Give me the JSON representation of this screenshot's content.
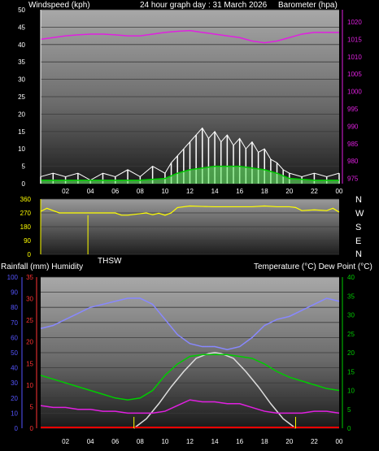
{
  "header": {
    "left_label": "Windspeed (kph)",
    "title": "24 hour graph day : 31 March 2026",
    "right_label": "Barometer (hpa)"
  },
  "x_axis": {
    "tick_labels": [
      "02",
      "04",
      "06",
      "08",
      "10",
      "12",
      "14",
      "16",
      "18",
      "20",
      "22",
      "00"
    ],
    "tick_hours": [
      2,
      4,
      6,
      8,
      10,
      12,
      14,
      16,
      18,
      20,
      22,
      24
    ]
  },
  "middle": {
    "compass_labels": [
      "N",
      "W",
      "S",
      "E",
      "N"
    ],
    "thsw_label": "THSW"
  },
  "bottom_header": {
    "left_label": "Rainfall (mm)  Humidity",
    "right_label": "Temperature (°C) Dew Point (°C)"
  },
  "colors": {
    "wind": "#ffffff",
    "gust_fill": "#66ee66",
    "wind_avg": "#00cc00",
    "barometer": "#e020e0",
    "direction": "#ffff00",
    "humidity": "#8888ff",
    "temperature": "#00cc00",
    "dewpoint": "#e020e0",
    "solar": "#dddddd",
    "rain": "#ff0000",
    "rain_axis": "#ff3333",
    "humidity_axis": "#5555ff",
    "temp_axis": "#00cc00"
  },
  "chart_data": [
    {
      "type": "line",
      "name": "wind-barometer",
      "y_left": {
        "ticks": [
          0,
          5,
          10,
          15,
          20,
          25,
          30,
          35,
          40,
          45,
          50
        ],
        "ylim": [
          0,
          50
        ]
      },
      "y_right": {
        "ticks": [
          975,
          980,
          985,
          990,
          995,
          1000,
          1005,
          1010,
          1015,
          1020
        ],
        "ylim": [
          973.5,
          1023.5
        ]
      },
      "series": [
        {
          "key": "barometer",
          "axis": "right",
          "x": [
            0,
            1,
            2,
            3,
            4,
            5,
            6,
            7,
            8,
            9,
            10,
            11,
            12,
            13,
            14,
            15,
            16,
            17,
            18,
            19,
            20,
            21,
            22,
            23,
            24
          ],
          "values": [
            1015,
            1015.5,
            1016,
            1016.3,
            1016.5,
            1016.5,
            1016.3,
            1016,
            1016,
            1016.5,
            1017,
            1017.3,
            1017.5,
            1017,
            1016.5,
            1016,
            1015.5,
            1014.5,
            1014,
            1014.5,
            1015.5,
            1016.5,
            1017,
            1017,
            1017
          ]
        },
        {
          "key": "wind",
          "axis": "left",
          "x": [
            0,
            1,
            2,
            3,
            4,
            5,
            6,
            7,
            8,
            9,
            10,
            10.5,
            11,
            11.5,
            12,
            12.5,
            13,
            13.5,
            14,
            14.5,
            15,
            15.5,
            16,
            16.5,
            17,
            17.5,
            18,
            18.5,
            19,
            19.5,
            20,
            21,
            22,
            23,
            24
          ],
          "values": [
            2,
            3,
            2,
            3,
            1,
            3,
            2,
            4,
            2,
            5,
            3,
            6,
            8,
            10,
            12,
            14,
            16,
            13,
            15,
            12,
            14,
            11,
            13,
            10,
            12,
            9,
            10,
            7,
            6,
            4,
            3,
            2,
            3,
            2,
            3
          ]
        },
        {
          "key": "wind_avg",
          "axis": "left",
          "x": [
            0,
            2,
            4,
            6,
            8,
            10,
            11,
            12,
            13,
            14,
            15,
            16,
            17,
            18,
            19,
            20,
            22,
            24
          ],
          "values": [
            1,
            1,
            1,
            1,
            1,
            1.5,
            3,
            4,
            4.5,
            5,
            5,
            5,
            4.5,
            4,
            3,
            1.5,
            1,
            1
          ]
        }
      ]
    },
    {
      "type": "line",
      "name": "wind-direction",
      "y": {
        "ticks": [
          0,
          90,
          180,
          270,
          360
        ],
        "ylim": [
          0,
          360
        ]
      },
      "series": [
        {
          "key": "direction",
          "x": [
            0,
            0.5,
            1,
            1.5,
            2,
            3,
            4,
            5,
            6,
            6.5,
            7,
            8,
            8.5,
            9,
            9.5,
            10,
            10.5,
            11,
            12,
            13,
            14,
            15,
            16,
            17,
            18,
            19,
            20,
            20.5,
            21,
            22,
            23,
            23.5,
            24
          ],
          "values": [
            280,
            300,
            285,
            270,
            270,
            270,
            270,
            270,
            270,
            255,
            255,
            265,
            270,
            258,
            268,
            255,
            270,
            305,
            315,
            312,
            310,
            310,
            310,
            310,
            315,
            310,
            310,
            305,
            285,
            290,
            285,
            300,
            275
          ]
        }
      ]
    },
    {
      "type": "line",
      "name": "humidity-temperature-rain",
      "y_left_rain": {
        "ticks": [
          0,
          5,
          10,
          15,
          20,
          25,
          30,
          35
        ],
        "ylim": [
          0,
          35
        ]
      },
      "y_left_humidity": {
        "ticks": [
          0,
          10,
          20,
          30,
          40,
          50,
          60,
          70,
          80,
          90,
          100
        ],
        "ylim": [
          0,
          100
        ]
      },
      "y_right": {
        "ticks": [
          0,
          5,
          10,
          15,
          20,
          25,
          30,
          35,
          40
        ],
        "ylim": [
          0,
          40
        ]
      },
      "series": [
        {
          "key": "humidity",
          "axis": "left_humidity",
          "x": [
            0,
            1,
            2,
            3,
            4,
            5,
            6,
            7,
            8,
            9,
            10,
            11,
            12,
            13,
            14,
            15,
            16,
            17,
            18,
            19,
            20,
            21,
            22,
            23,
            24
          ],
          "values": [
            66,
            68,
            72,
            76,
            80,
            82,
            84,
            86,
            86,
            82,
            72,
            62,
            56,
            54,
            54,
            52,
            54,
            60,
            68,
            72,
            74,
            78,
            82,
            86,
            84
          ]
        },
        {
          "key": "temperature",
          "axis": "right",
          "x": [
            0,
            1,
            2,
            3,
            4,
            5,
            6,
            7,
            8,
            9,
            10,
            11,
            12,
            13,
            14,
            15,
            16,
            17,
            18,
            19,
            20,
            21,
            22,
            23,
            24
          ],
          "values": [
            14,
            13,
            12,
            11,
            10,
            9,
            8,
            7.5,
            8,
            10,
            14,
            17,
            19,
            19.5,
            19.5,
            19.5,
            19,
            18.5,
            17,
            15,
            13.5,
            12.5,
            11.5,
            10.5,
            10
          ]
        },
        {
          "key": "dewpoint",
          "axis": "right",
          "x": [
            0,
            1,
            2,
            3,
            4,
            5,
            6,
            7,
            8,
            9,
            10,
            11,
            12,
            13,
            14,
            15,
            16,
            17,
            18,
            19,
            20,
            21,
            22,
            23,
            24
          ],
          "values": [
            6,
            5.5,
            5.5,
            5,
            5,
            4.5,
            4.5,
            4,
            4,
            4,
            4.5,
            6,
            7.5,
            7,
            7,
            6.5,
            6.5,
            5.5,
            4.5,
            4,
            4,
            4,
            4.5,
            4.5,
            4
          ]
        },
        {
          "key": "solar",
          "axis": "right",
          "x": [
            7.5,
            8.5,
            9.5,
            10.5,
            11.5,
            12.5,
            13.5,
            14,
            14.5,
            15.5,
            16.5,
            17.5,
            18.5,
            19.5,
            20.5
          ],
          "values": [
            0,
            2.5,
            6.5,
            11,
            15,
            18.5,
            19.8,
            20,
            19.8,
            18.5,
            15,
            11,
            6.5,
            2.5,
            0
          ]
        },
        {
          "key": "rain",
          "axis": "left_rain",
          "x": [
            0,
            24
          ],
          "values": [
            0,
            0
          ]
        }
      ],
      "markers": {
        "sunrise": 7.5,
        "sunset": 20.5
      }
    }
  ]
}
